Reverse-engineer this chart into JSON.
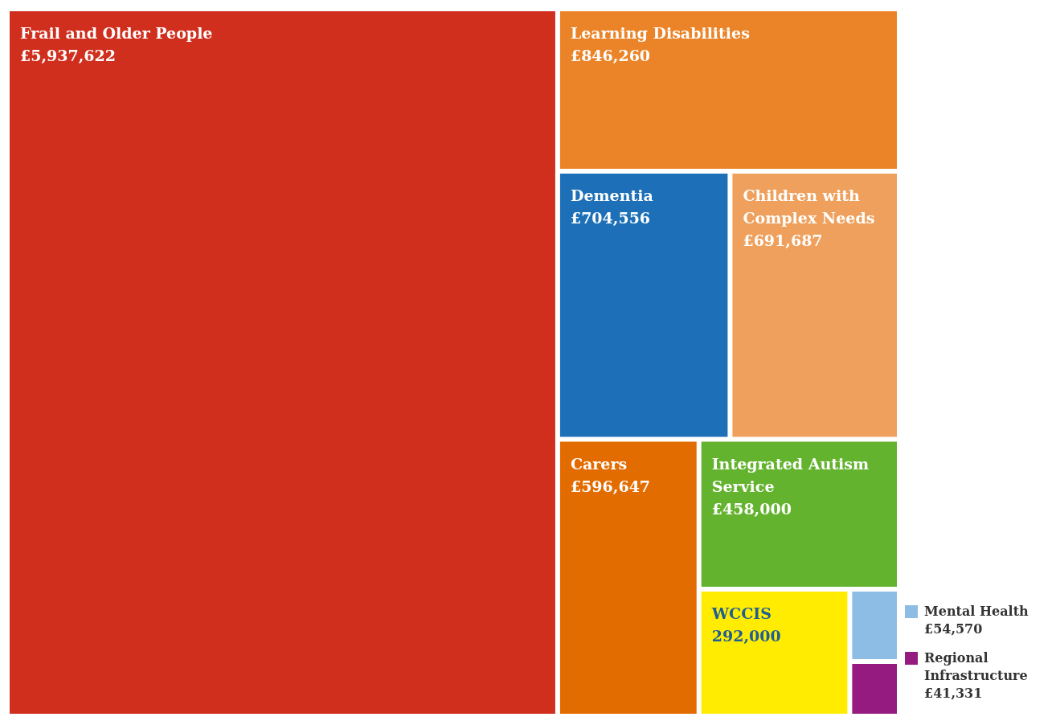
{
  "chart_data": {
    "type": "other",
    "categories": [
      "Frail and Older People",
      "Learning Disabilities",
      "Dementia",
      "Children with Complex Needs",
      "Carers",
      "Integrated Autism Service",
      "Mental Health",
      "Regional Infrastructure",
      "WCCIS"
    ],
    "values": [
      5937622,
      846260,
      704556,
      691687,
      596647,
      458000,
      54570,
      41331,
      292000
    ],
    "value_labels": [
      "£5,937,622",
      "£846,260",
      "£704,556",
      "£691,687",
      "£596,647",
      "£458,000",
      "£54,570",
      "£41,331",
      "292,000"
    ],
    "colors": [
      "#d02f1e",
      "#eb8428",
      "#1d70b7",
      "#eea05c",
      "#e26c00",
      "#64b32e",
      "#8dbde4",
      "#951b81",
      "#ffec00"
    ],
    "data_labels": true
  }
}
